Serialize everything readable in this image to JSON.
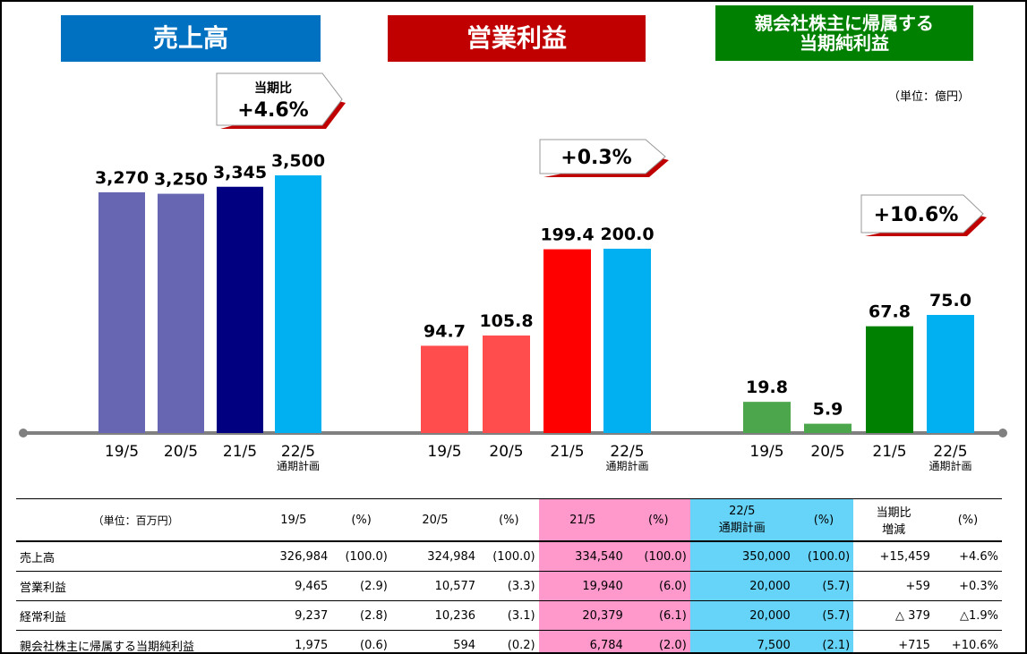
{
  "headers": [
    {
      "text": "売上高",
      "color": "#0070c0"
    },
    {
      "text": "営業利益",
      "color": "#c00000"
    },
    {
      "text": "親会社株主に帰属する\n当期純利益",
      "color": "#008000"
    }
  ],
  "unit_top": "（単位：億円）",
  "chart_data": [
    {
      "type": "bar",
      "title": "売上高",
      "categories": [
        "19/5",
        "20/5",
        "21/5",
        "22/5"
      ],
      "category_notes": [
        "",
        "",
        "",
        "通期計画"
      ],
      "values": [
        3270,
        3250,
        3345,
        3500
      ],
      "value_labels": [
        "3,270",
        "3,250",
        "3,345",
        "3,500"
      ],
      "colors": [
        "#6666b3",
        "#6666b3",
        "#000080",
        "#00b0f0"
      ],
      "callout": {
        "line1": "当期比",
        "line2": "+4.6%"
      }
    },
    {
      "type": "bar",
      "title": "営業利益",
      "categories": [
        "19/5",
        "20/5",
        "21/5",
        "22/5"
      ],
      "category_notes": [
        "",
        "",
        "",
        "通期計画"
      ],
      "values": [
        94.7,
        105.8,
        199.4,
        200.0
      ],
      "value_labels": [
        "94.7",
        "105.8",
        "199.4",
        "200.0"
      ],
      "colors": [
        "#ff4d4d",
        "#ff4d4d",
        "#ff0000",
        "#00b0f0"
      ],
      "callout": {
        "line1": "",
        "line2": "+0.3%"
      }
    },
    {
      "type": "bar",
      "title": "親会社株主に帰属する当期純利益",
      "categories": [
        "19/5",
        "20/5",
        "21/5",
        "22/5"
      ],
      "category_notes": [
        "",
        "",
        "",
        "通期計画"
      ],
      "values": [
        19.8,
        5.9,
        67.8,
        75.0
      ],
      "value_labels": [
        "19.8",
        "5.9",
        "67.8",
        "75.0"
      ],
      "colors": [
        "#4ca64c",
        "#4ca64c",
        "#008000",
        "#00b0f0"
      ],
      "callout": {
        "line1": "",
        "line2": "+10.6%"
      }
    }
  ],
  "table": {
    "head": [
      "（単位：百万円）",
      "19/5",
      "(%)",
      "20/5",
      "(%)",
      "21/5",
      "(%)",
      "22/5\n通期計画",
      "(%)",
      "当期比\n増減",
      "(%)"
    ],
    "rows": [
      [
        "売上高",
        "326,984",
        "(100.0)",
        "324,984",
        "(100.0)",
        "334,540",
        "(100.0)",
        "350,000",
        "(100.0)",
        "+15,459",
        "+4.6%"
      ],
      [
        "営業利益",
        "9,465",
        "(2.9)",
        "10,577",
        "(3.3)",
        "19,940",
        "(6.0)",
        "20,000",
        "(5.7)",
        "+59",
        "+0.3%"
      ],
      [
        "経常利益",
        "9,237",
        "(2.8)",
        "10,236",
        "(3.1)",
        "20,379",
        "(6.1)",
        "20,000",
        "(5.7)",
        "△ 379",
        "△1.9%"
      ],
      [
        "親会社株主に帰属する当期純利益",
        "1,975",
        "(0.6)",
        "594",
        "(0.2)",
        "6,784",
        "(2.0)",
        "7,500",
        "(2.1)",
        "+715",
        "+10.6%"
      ]
    ]
  }
}
